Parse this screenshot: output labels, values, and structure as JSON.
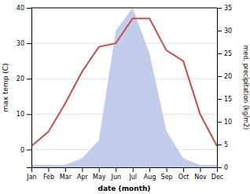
{
  "chart_data": {
    "type": "line",
    "xlabel": "date (month)",
    "ylabel": "max temp (C)",
    "y2label": "med. precipitation (kg/m2)",
    "categories": [
      "Jan",
      "Feb",
      "Mar",
      "Apr",
      "May",
      "Jun",
      "Jul",
      "Aug",
      "Sep",
      "Oct",
      "Nov",
      "Dec"
    ],
    "series": [
      {
        "type": "area",
        "axis": "y2",
        "color": "#b8c4e8",
        "values": [
          0.5,
          0.5,
          0.5,
          2,
          6,
          30,
          35,
          25,
          8,
          2,
          0.5,
          0.5
        ]
      },
      {
        "type": "line",
        "color": "#c0504d",
        "values": [
          1,
          5,
          13,
          22,
          29,
          30,
          37,
          37,
          28,
          25,
          10,
          1
        ]
      }
    ],
    "ylim": [
      -5,
      40
    ],
    "yticks": [
      0,
      10,
      20,
      30,
      40
    ],
    "y2lim": [
      0,
      35
    ],
    "y2ticks": [
      0,
      5,
      10,
      15,
      20,
      25,
      30,
      35
    ],
    "grid": true
  }
}
